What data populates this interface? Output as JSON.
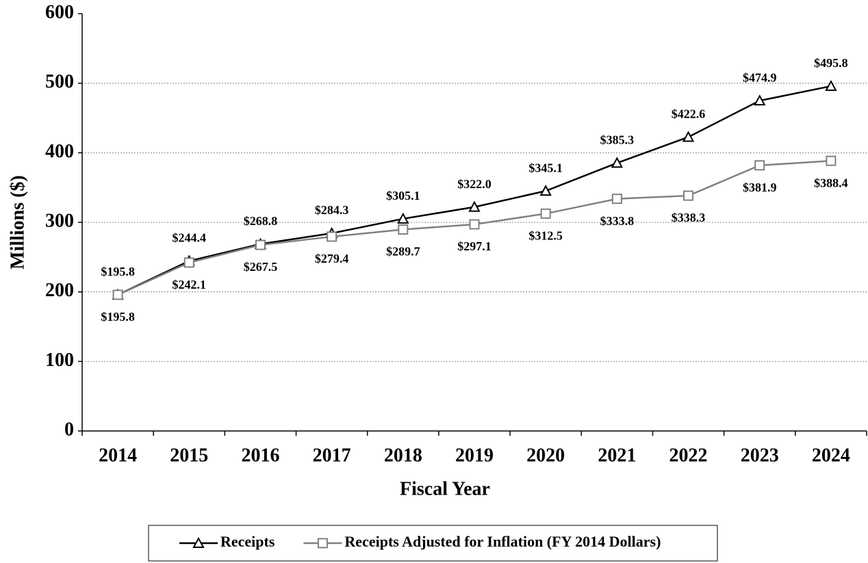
{
  "chart_data": {
    "type": "line",
    "x_label": "Fiscal Year",
    "y_label": "Millions ($)",
    "categories": [
      "2014",
      "2015",
      "2016",
      "2017",
      "2018",
      "2019",
      "2020",
      "2021",
      "2022",
      "2023",
      "2024"
    ],
    "series": [
      {
        "name": "Receipts",
        "color": "#000000",
        "marker": "triangle",
        "values": [
          195.8,
          244.4,
          268.8,
          284.3,
          305.1,
          322.0,
          345.1,
          385.3,
          422.6,
          474.9,
          495.8
        ],
        "value_labels": [
          "$195.8",
          "$244.4",
          "$268.8",
          "$284.3",
          "$305.1",
          "$322.0",
          "$345.1",
          "$385.3",
          "$422.6",
          "$474.9",
          "$495.8"
        ]
      },
      {
        "name": "Receipts Adjusted for Inflation (FY 2014 Dollars)",
        "color": "#808080",
        "marker": "square",
        "values": [
          195.8,
          242.1,
          267.5,
          279.4,
          289.7,
          297.1,
          312.5,
          333.8,
          338.3,
          381.9,
          388.4
        ],
        "value_labels": [
          "$195.8",
          "$242.1",
          "$267.5",
          "$279.4",
          "$289.7",
          "$297.1",
          "$312.5",
          "$333.8",
          "$338.3",
          "$381.9",
          "$388.4"
        ]
      }
    ],
    "ylim": [
      0,
      600
    ],
    "yticks": [
      0,
      100,
      200,
      300,
      400,
      500,
      600
    ],
    "grid": true,
    "legend": "bottom"
  }
}
